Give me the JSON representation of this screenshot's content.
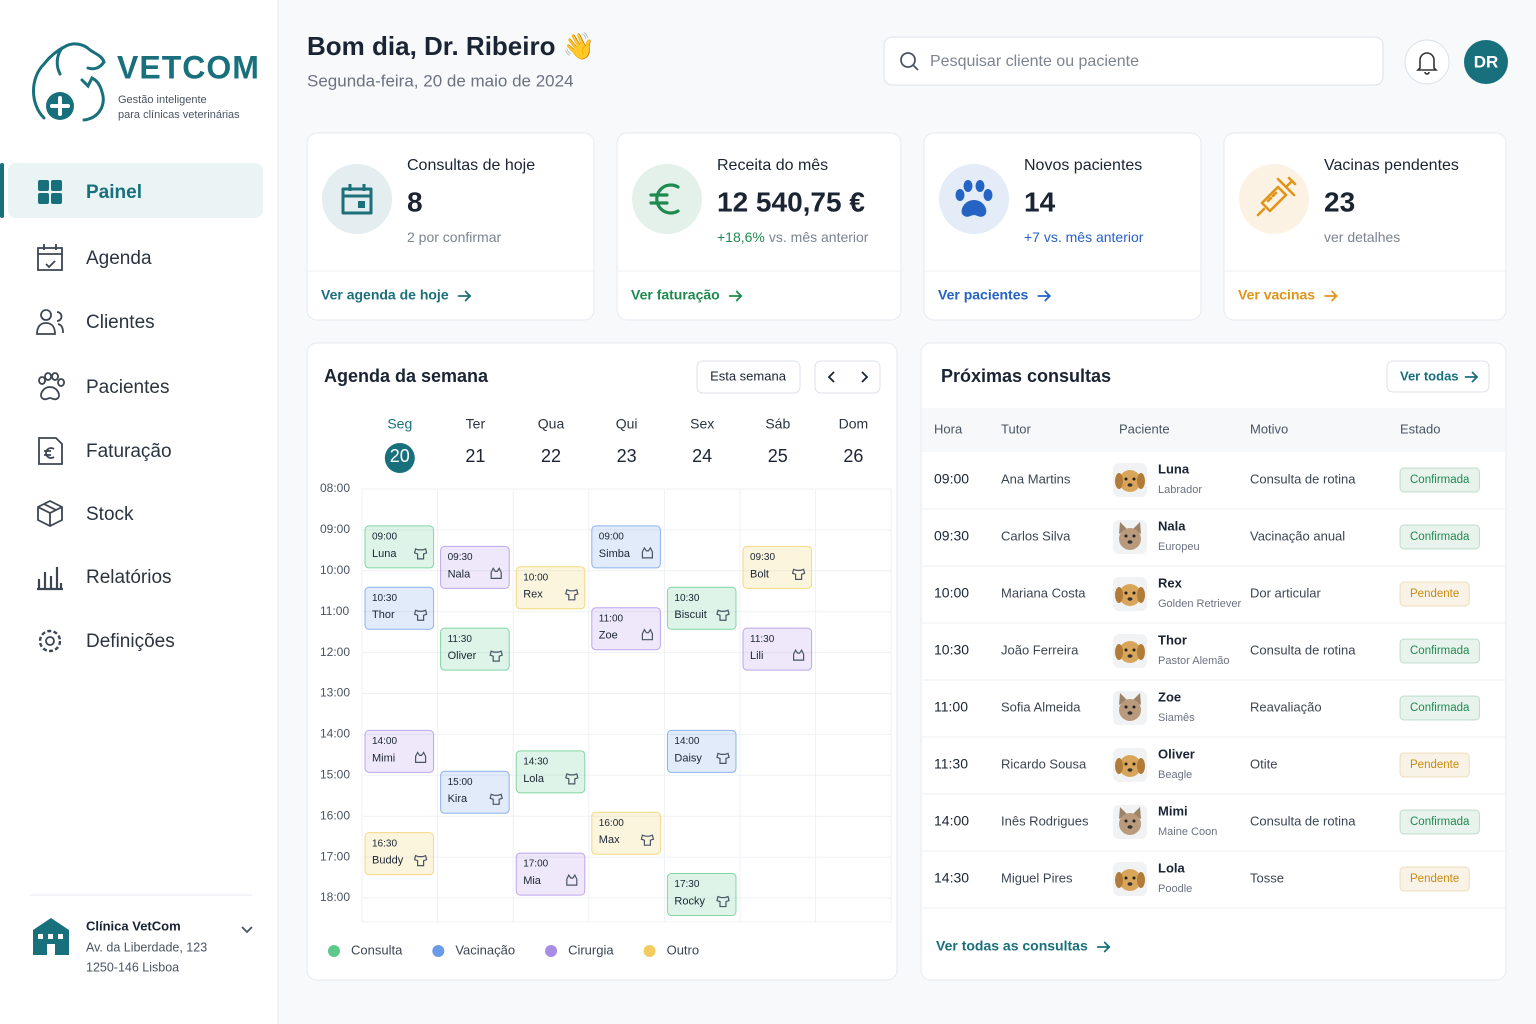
{
  "brand": {
    "name": "VETCOM",
    "tagline": [
      "Gestão inteligente",
      "para clínicas veterinárias"
    ]
  },
  "nav": {
    "active": 0,
    "items": [
      "Painel",
      "Agenda",
      "Clientes",
      "Pacientes",
      "Faturação",
      "Stock",
      "Relatórios",
      "Definições"
    ]
  },
  "clinic": {
    "name": "Clínica VetCom",
    "address": "Av. da Liberdade, 123",
    "city": "1250-146 Lisboa"
  },
  "header": {
    "greeting": "Bom dia, Dr. Ribeiro 👋",
    "date": "Segunda-feira, 20 de maio de 2024",
    "search_placeholder": "Pesquisar cliente ou paciente",
    "user_initials": "DR"
  },
  "stats": [
    {
      "title": "Consultas de hoje",
      "value": "8",
      "note": "2 por confirmar",
      "link": "Ver agenda de hoje",
      "color": "#1d6f7b"
    },
    {
      "title": "Receita do mês",
      "value": "12 540,75 €",
      "change": "+18,6%",
      "note": "vs. mês anterior",
      "link": "Ver faturação",
      "color": "#1f8a50"
    },
    {
      "title": "Novos pacientes",
      "value": "14",
      "change": "+7 vs. mês anterior",
      "link": "Ver pacientes",
      "color": "#2563c4"
    },
    {
      "title": "Vacinas pendentes",
      "value": "23",
      "note": "ver detalhes",
      "link": "Ver vacinas",
      "color": "#e0951a"
    }
  ],
  "agenda": {
    "title": "Agenda da semana",
    "period_button": "Esta semana",
    "today": 0,
    "hours": [
      "08:00",
      "09:00",
      "10:00",
      "11:00",
      "12:00",
      "13:00",
      "14:00",
      "15:00",
      "16:00",
      "17:00",
      "18:00"
    ],
    "days": [
      {
        "name": "Seg",
        "date": "20",
        "events": [
          {
            "time": "09:00",
            "patient": "Luna",
            "type": "Consulta",
            "species": "dog"
          },
          {
            "time": "10:30",
            "patient": "Thor",
            "type": "Vacinação",
            "species": "dog"
          },
          {
            "time": "14:00",
            "patient": "Mimi",
            "type": "Cirurgia",
            "species": "cat"
          },
          {
            "time": "16:30",
            "patient": "Buddy",
            "type": "Outro",
            "species": "dog"
          }
        ]
      },
      {
        "name": "Ter",
        "date": "21",
        "events": [
          {
            "time": "09:30",
            "patient": "Nala",
            "type": "Cirurgia",
            "species": "cat"
          },
          {
            "time": "11:30",
            "patient": "Oliver",
            "type": "Consulta",
            "species": "dog"
          },
          {
            "time": "15:00",
            "patient": "Kira",
            "type": "Vacinação",
            "species": "dog"
          }
        ]
      },
      {
        "name": "Qua",
        "date": "22",
        "events": [
          {
            "time": "10:00",
            "patient": "Rex",
            "type": "Outro",
            "species": "dog"
          },
          {
            "time": "14:30",
            "patient": "Lola",
            "type": "Consulta",
            "species": "dog"
          },
          {
            "time": "17:00",
            "patient": "Mia",
            "type": "Cirurgia",
            "species": "cat"
          }
        ]
      },
      {
        "name": "Qui",
        "date": "23",
        "events": [
          {
            "time": "09:00",
            "patient": "Simba",
            "type": "Vacinação",
            "species": "cat"
          },
          {
            "time": "11:00",
            "patient": "Zoe",
            "type": "Cirurgia",
            "species": "cat"
          },
          {
            "time": "16:00",
            "patient": "Max",
            "type": "Outro",
            "species": "dog"
          }
        ]
      },
      {
        "name": "Sex",
        "date": "24",
        "events": [
          {
            "time": "10:30",
            "patient": "Biscuit",
            "type": "Consulta",
            "species": "dog"
          },
          {
            "time": "14:00",
            "patient": "Daisy",
            "type": "Vacinação",
            "species": "dog"
          },
          {
            "time": "17:30",
            "patient": "Rocky",
            "type": "Consulta",
            "species": "dog"
          }
        ]
      },
      {
        "name": "Sáb",
        "date": "25",
        "events": [
          {
            "time": "09:30",
            "patient": "Bolt",
            "type": "Outro",
            "species": "dog"
          },
          {
            "time": "11:30",
            "patient": "Lili",
            "type": "Cirurgia",
            "species": "cat"
          }
        ]
      },
      {
        "name": "Dom",
        "date": "26",
        "events": []
      }
    ],
    "legend": [
      {
        "label": "Consulta",
        "color": "#5cc98a"
      },
      {
        "label": "Vacinação",
        "color": "#6a9be8"
      },
      {
        "label": "Cirurgia",
        "color": "#a98ce6"
      },
      {
        "label": "Outro",
        "color": "#f2cc5c"
      }
    ]
  },
  "appointments": {
    "title": "Próximas consultas",
    "view_all": "Ver todas",
    "columns": [
      "Hora",
      "Tutor",
      "Paciente",
      "Motivo",
      "Estado"
    ],
    "rows": [
      {
        "time": "09:00",
        "tutor": "Ana Martins",
        "patient": "Luna",
        "breed": "Labrador",
        "reason": "Consulta de rotina",
        "status": "Confirmada",
        "status_color": "#1f8a50",
        "species": "dog"
      },
      {
        "time": "09:30",
        "tutor": "Carlos Silva",
        "patient": "Nala",
        "breed": "Europeu",
        "reason": "Vacinação anual",
        "status": "Confirmada",
        "status_color": "#1f8a50",
        "species": "cat"
      },
      {
        "time": "10:00",
        "tutor": "Mariana Costa",
        "patient": "Rex",
        "breed": "Golden Retriever",
        "reason": "Dor articular",
        "status": "Pendente",
        "status_color": "#c98a10",
        "species": "dog"
      },
      {
        "time": "10:30",
        "tutor": "João Ferreira",
        "patient": "Thor",
        "breed": "Pastor Alemão",
        "reason": "Consulta de rotina",
        "status": "Confirmada",
        "status_color": "#1f8a50",
        "species": "dog"
      },
      {
        "time": "11:00",
        "tutor": "Sofia Almeida",
        "patient": "Zoe",
        "breed": "Siamês",
        "reason": "Reavaliação",
        "status": "Confirmada",
        "status_color": "#1f8a50",
        "species": "cat"
      },
      {
        "time": "11:30",
        "tutor": "Ricardo Sousa",
        "patient": "Oliver",
        "breed": "Beagle",
        "reason": "Otite",
        "status": "Pendente",
        "status_color": "#c98a10",
        "species": "dog"
      },
      {
        "time": "14:00",
        "tutor": "Inês Rodrigues",
        "patient": "Mimi",
        "breed": "Maine Coon",
        "reason": "Consulta de rotina",
        "status": "Confirmada",
        "status_color": "#1f8a50",
        "species": "cat"
      },
      {
        "time": "14:30",
        "tutor": "Miguel Pires",
        "patient": "Lola",
        "breed": "Poodle",
        "reason": "Tosse",
        "status": "Pendente",
        "status_color": "#c98a10",
        "species": "dog"
      }
    ],
    "footer_link": "Ver todas as consultas"
  }
}
